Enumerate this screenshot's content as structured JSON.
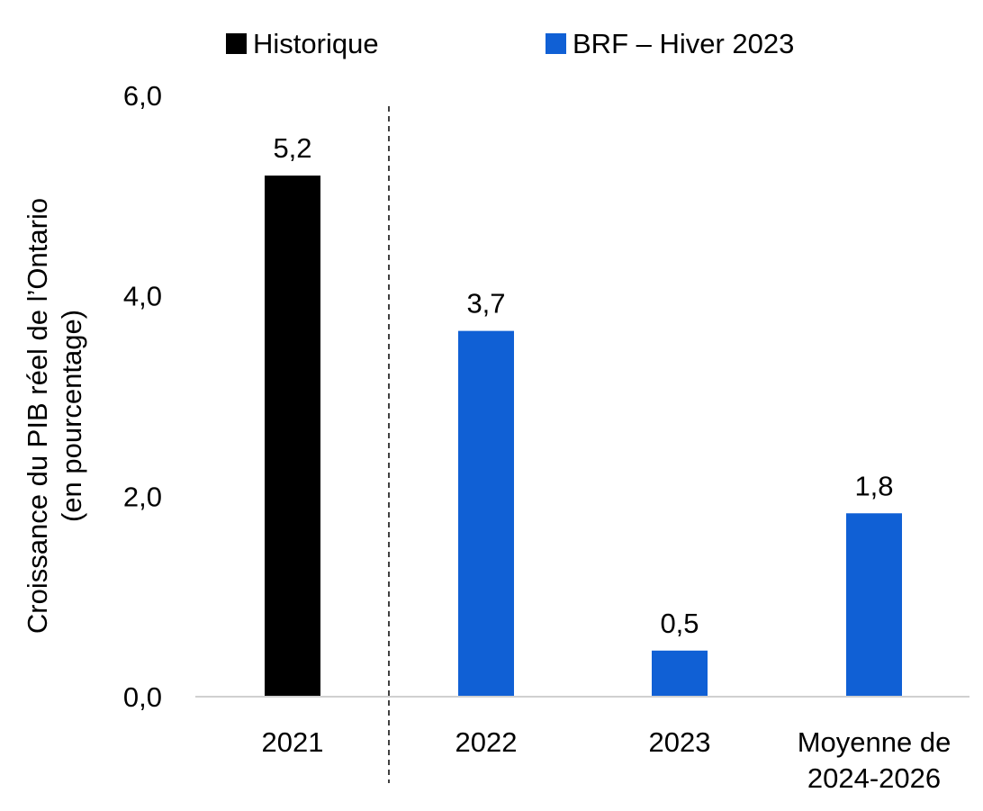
{
  "chart_data": {
    "type": "bar",
    "title": "",
    "ylabel_line1": "Croissance du PIB réel de l’Ontario",
    "ylabel_line2": "(en pourcentage)",
    "xlabel": "",
    "ylim": [
      0,
      6
    ],
    "yticks": [
      "0,0",
      "2,0",
      "4,0",
      "6,0"
    ],
    "ytick_values": [
      0,
      2,
      4,
      6
    ],
    "categories": [
      {
        "lines": [
          "2021"
        ]
      },
      {
        "lines": [
          "2022"
        ]
      },
      {
        "lines": [
          "2023"
        ]
      },
      {
        "lines": [
          "Moyenne de",
          "2024-2026"
        ]
      }
    ],
    "legend": [
      {
        "label": "Historique",
        "color": "#000000"
      },
      {
        "label": "BRF – Hiver 2023",
        "color": "#1060D5"
      }
    ],
    "legend_placement": "top",
    "series": [
      {
        "name": "Historique",
        "color": "#000000",
        "values": [
          5.2,
          null,
          null,
          null
        ],
        "labels": [
          "5,2",
          "",
          "",
          ""
        ]
      },
      {
        "name": "BRF – Hiver 2023",
        "color": "#1060D5",
        "values": [
          null,
          3.65,
          0.46,
          1.83
        ],
        "labels": [
          "",
          "3,7",
          "0,5",
          "1,8"
        ]
      }
    ],
    "separator": "dashed vertical line between 2021 and 2022",
    "grid": false
  }
}
